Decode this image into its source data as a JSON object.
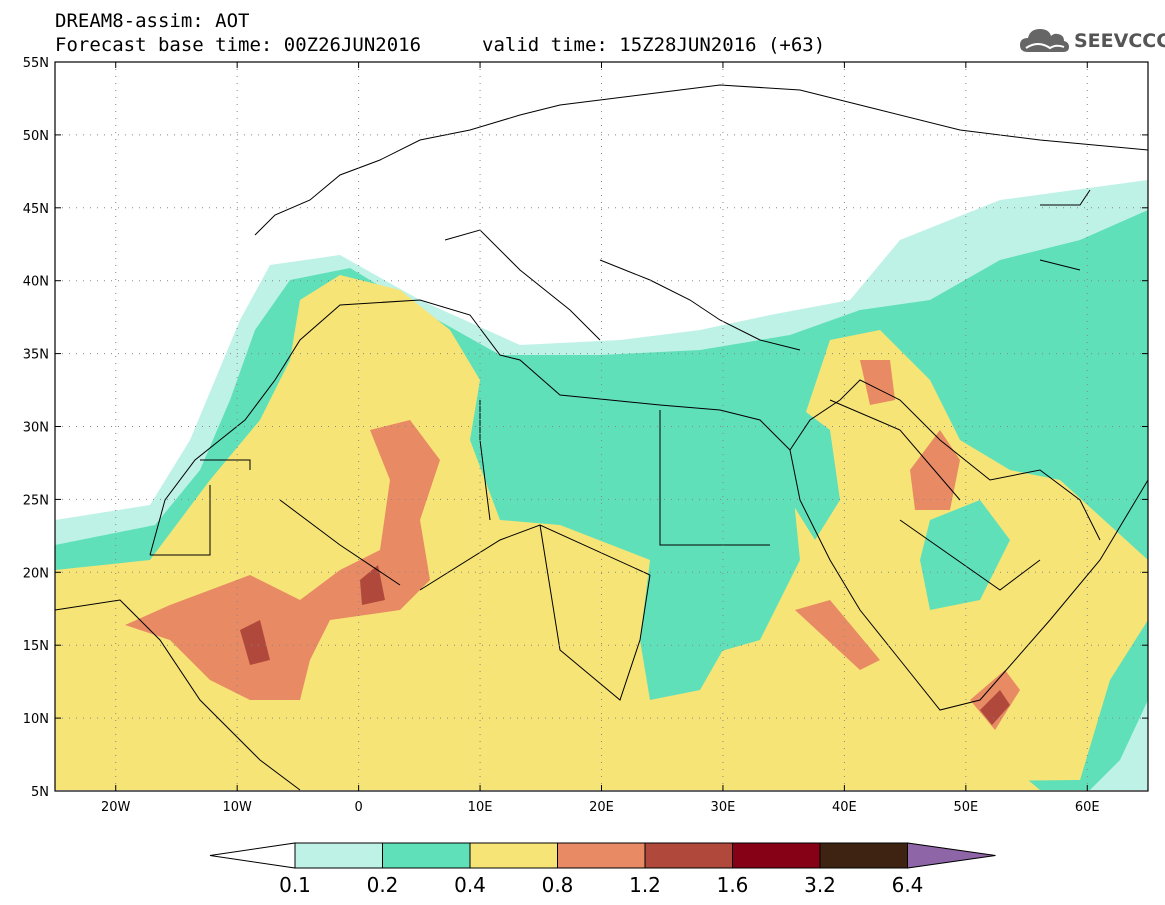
{
  "header": {
    "title_line1": "DREAM8-assim: AOT",
    "base_time": "Forecast base time: 00Z26JUN2016",
    "valid_time": "valid time: 15Z28JUN2016 (+63)",
    "logo_text": "SEEVCCC",
    "logo_icon": "cloud-icon"
  },
  "map": {
    "lon_range": [
      -25,
      65
    ],
    "lat_range": [
      5,
      55
    ],
    "lon_ticks": [
      {
        "value": -20,
        "label": "20W"
      },
      {
        "value": -10,
        "label": "10W"
      },
      {
        "value": 0,
        "label": "0"
      },
      {
        "value": 10,
        "label": "10E"
      },
      {
        "value": 20,
        "label": "20E"
      },
      {
        "value": 30,
        "label": "30E"
      },
      {
        "value": 40,
        "label": "40E"
      },
      {
        "value": 50,
        "label": "50E"
      },
      {
        "value": 60,
        "label": "60E"
      }
    ],
    "lat_ticks": [
      {
        "value": 55,
        "label": "55N"
      },
      {
        "value": 50,
        "label": "50N"
      },
      {
        "value": 45,
        "label": "45N"
      },
      {
        "value": 40,
        "label": "40N"
      },
      {
        "value": 35,
        "label": "35N"
      },
      {
        "value": 30,
        "label": "30N"
      },
      {
        "value": 25,
        "label": "25N"
      },
      {
        "value": 20,
        "label": "20N"
      },
      {
        "value": 15,
        "label": "15N"
      },
      {
        "value": 10,
        "label": "10N"
      },
      {
        "value": 5,
        "label": "5N"
      }
    ],
    "grid": "dotted"
  },
  "legend": {
    "colors": [
      "#ffffff",
      "#bff2e6",
      "#5fe0b9",
      "#f7e477",
      "#e88a63",
      "#b0493c",
      "#860016",
      "#3e2312",
      "#8e66a8"
    ],
    "labels": [
      "0.1",
      "0.2",
      "0.4",
      "0.8",
      "1.2",
      "1.6",
      "3.2",
      "6.4"
    ]
  }
}
